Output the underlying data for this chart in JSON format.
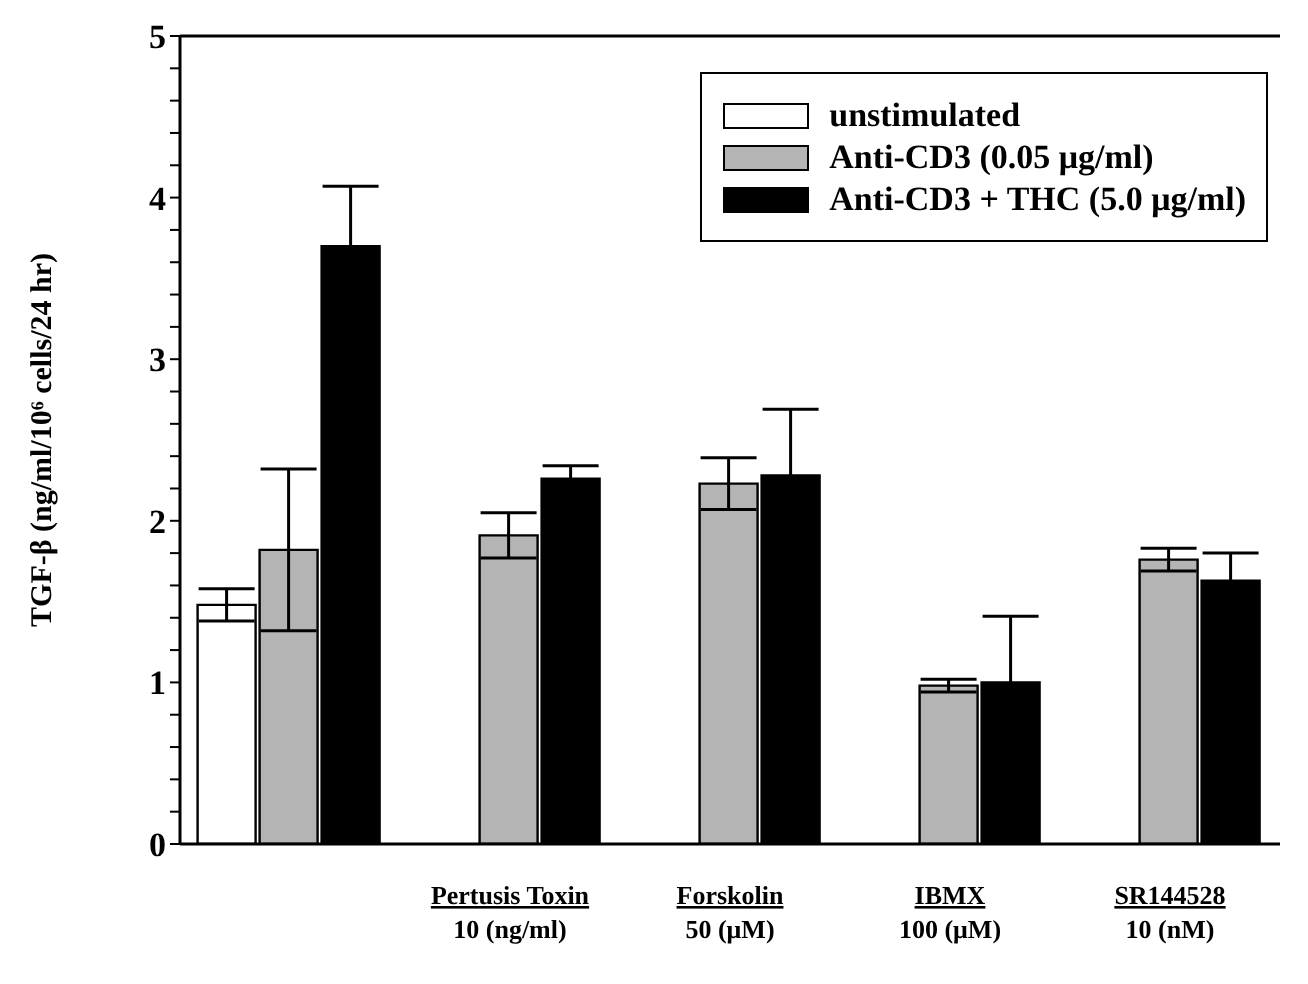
{
  "chart_data": {
    "type": "bar",
    "ylabel": "TGF-β (ng/ml/10⁶ cells/24 hr)",
    "categories": [
      null,
      "Pertusis Toxin\n10 (ng/ml)",
      "Forskolin\n50 (μM)",
      "IBMX\n100 (μM)",
      "SR144528\n10 (nM)"
    ],
    "series": [
      {
        "name": "unstimulated",
        "color": "#ffffff",
        "values": [
          1.48,
          null,
          null,
          null,
          null
        ],
        "errors": [
          0.1,
          null,
          null,
          null,
          null
        ]
      },
      {
        "name": "Anti-CD3 (0.05 μg/ml)",
        "color": "#b4b4b4",
        "values": [
          1.82,
          1.91,
          2.23,
          0.98,
          1.76
        ],
        "errors": [
          0.5,
          0.14,
          0.16,
          0.04,
          0.07
        ]
      },
      {
        "name": "Anti-CD3 + THC (5.0 μg/ml)",
        "color": "#000000",
        "values": [
          3.7,
          2.26,
          2.28,
          1.0,
          1.63
        ],
        "errors": [
          0.37,
          0.08,
          0.41,
          0.41,
          0.17
        ]
      }
    ],
    "ylim": [
      0,
      5
    ],
    "yticks": [
      0,
      {
        "value": 0.2,
        "label": null
      },
      {
        "value": 0.4,
        "label": null
      },
      {
        "value": 0.6,
        "label": null
      },
      {
        "value": 0.8,
        "label": null
      },
      1,
      {
        "value": 1.2,
        "label": null
      },
      {
        "value": 1.4,
        "label": null
      },
      {
        "value": 1.6,
        "label": null
      },
      {
        "value": 1.8,
        "label": null
      },
      2,
      {
        "value": 2.2,
        "label": null
      },
      {
        "value": 2.4,
        "label": null
      },
      {
        "value": 2.6,
        "label": null
      },
      {
        "value": 2.8,
        "label": null
      },
      3,
      {
        "value": 3.2,
        "label": null
      },
      {
        "value": 3.4,
        "label": null
      },
      {
        "value": 3.6,
        "label": null
      },
      {
        "value": 3.8,
        "label": null
      },
      4,
      {
        "value": 4.2,
        "label": null
      },
      {
        "value": 4.4,
        "label": null
      },
      {
        "value": 4.6,
        "label": null
      },
      {
        "value": 4.8,
        "label": null
      },
      5
    ],
    "grid": false,
    "legend": "top right"
  }
}
